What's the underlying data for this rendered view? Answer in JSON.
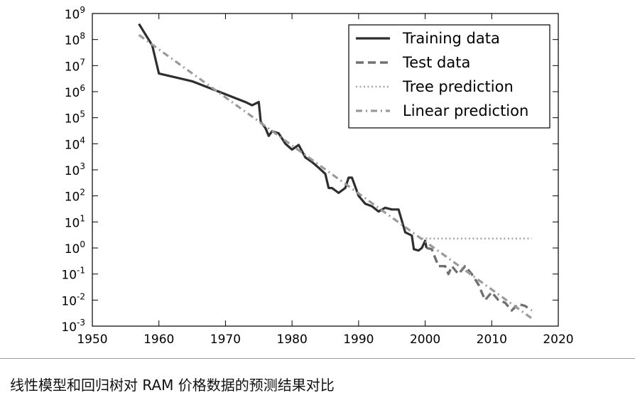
{
  "caption": "线性模型和回归树对 RAM 价格数据的预测结果对比",
  "chart_data": {
    "type": "line",
    "title": "",
    "xlabel": "",
    "ylabel": "",
    "xlim": [
      1950,
      2020
    ],
    "yscale": "log",
    "ylim_exponent": [
      -3,
      9
    ],
    "ylim": [
      0.001,
      1000000000
    ],
    "xticks": [
      1950,
      1960,
      1970,
      1980,
      1990,
      2000,
      2010,
      2020
    ],
    "ytick_base": "10",
    "ytick_exponents": [
      "-3",
      "-2",
      "-1",
      "0",
      "1",
      "2",
      "3",
      "4",
      "5",
      "6",
      "7",
      "8",
      "9"
    ],
    "legend_position": "top-right",
    "grid": false,
    "series": [
      {
        "name": "Training data",
        "style": "solid",
        "color": "#2e2e2e",
        "points": [
          [
            1957,
            400000000
          ],
          [
            1959,
            60000000
          ],
          [
            1960,
            5000000
          ],
          [
            1965,
            2500000
          ],
          [
            1970,
            800000
          ],
          [
            1973,
            400000
          ],
          [
            1974,
            300000
          ],
          [
            1975,
            400000
          ],
          [
            1975.3,
            70000
          ],
          [
            1976,
            40000
          ],
          [
            1976.5,
            20000
          ],
          [
            1977,
            30000
          ],
          [
            1978,
            25000
          ],
          [
            1979,
            10000
          ],
          [
            1980,
            6000
          ],
          [
            1981,
            9000
          ],
          [
            1982,
            3000
          ],
          [
            1983,
            2000
          ],
          [
            1984,
            1200
          ],
          [
            1985,
            700
          ],
          [
            1985.5,
            200
          ],
          [
            1986,
            200
          ],
          [
            1987,
            130
          ],
          [
            1988,
            200
          ],
          [
            1988.5,
            500
          ],
          [
            1989,
            500
          ],
          [
            1990,
            100
          ],
          [
            1991,
            50
          ],
          [
            1992,
            40
          ],
          [
            1993,
            25
          ],
          [
            1994,
            35
          ],
          [
            1995,
            30
          ],
          [
            1996,
            30
          ],
          [
            1997,
            4
          ],
          [
            1998,
            3
          ],
          [
            1998.3,
            0.9
          ],
          [
            1999,
            0.8
          ],
          [
            1999.5,
            1
          ],
          [
            2000,
            1.9
          ],
          [
            2000.2,
            1
          ]
        ]
      },
      {
        "name": "Test data",
        "style": "dashed",
        "color": "#707070",
        "points": [
          [
            2000.2,
            1
          ],
          [
            2001,
            0.9
          ],
          [
            2002,
            0.2
          ],
          [
            2003,
            0.2
          ],
          [
            2003.5,
            0.1
          ],
          [
            2004,
            0.2
          ],
          [
            2005,
            0.1
          ],
          [
            2006,
            0.2
          ],
          [
            2007,
            0.1
          ],
          [
            2008,
            0.04
          ],
          [
            2009,
            0.01
          ],
          [
            2010,
            0.02
          ],
          [
            2011,
            0.01
          ],
          [
            2012,
            0.008
          ],
          [
            2013,
            0.004
          ],
          [
            2014,
            0.007
          ],
          [
            2015,
            0.006
          ],
          [
            2016,
            0.004
          ]
        ]
      },
      {
        "name": "Tree prediction",
        "style": "dotted",
        "color": "#a8a8a8",
        "points": [
          [
            1999.5,
            2.3
          ],
          [
            2016,
            2.3
          ]
        ]
      },
      {
        "name": "Linear prediction",
        "style": "dashdot",
        "color": "#9a9a9a",
        "points": [
          [
            1957,
            150000000
          ],
          [
            2016,
            0.002
          ]
        ]
      }
    ]
  }
}
